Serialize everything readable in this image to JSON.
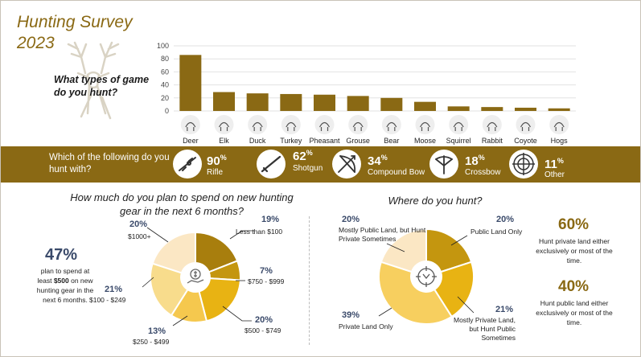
{
  "title_line1": "Hunting Survey",
  "title_line2": "2023",
  "chart_data": [
    {
      "type": "bar",
      "question": "What types of game do you hunt?",
      "categories": [
        "Deer",
        "Elk",
        "Duck",
        "Turkey",
        "Pheasant",
        "Grouse",
        "Bear",
        "Moose",
        "Squirrel",
        "Rabbit",
        "Coyote",
        "Hogs"
      ],
      "values": [
        86,
        29,
        27,
        26,
        25,
        23,
        20,
        14,
        7,
        6,
        5,
        4
      ],
      "ylim": [
        0,
        100
      ],
      "yticks": [
        0,
        20,
        40,
        60,
        80,
        100
      ],
      "grid": true,
      "color": "#8a6914"
    },
    {
      "type": "pie",
      "question": "How much do you plan to spend on new hunting gear in the next 6 months?",
      "slices": [
        {
          "label": "Less than $100",
          "value": 19,
          "pct": "19%",
          "color": "#a87e0d"
        },
        {
          "label": "$750 - $999",
          "value": 7,
          "pct": "7%",
          "color": "#c4960f"
        },
        {
          "label": "$500 - $749",
          "value": 20,
          "pct": "20%",
          "color": "#e8b313"
        },
        {
          "label": "$250 - $499",
          "value": 13,
          "pct": "13%",
          "color": "#f5c84e"
        },
        {
          "label": "$100 - $249",
          "value": 21,
          "pct": "21%",
          "color": "#f8dc8c"
        },
        {
          "label": "$1000+",
          "value": 20,
          "pct": "20%",
          "color": "#fbe7c4"
        }
      ]
    },
    {
      "type": "pie",
      "question": "Where do you hunt?",
      "slices": [
        {
          "label": "Public Land Only",
          "value": 20,
          "pct": "20%",
          "color": "#c4960f"
        },
        {
          "label": "Mostly Private Land, but Hunt Public Sometimes",
          "value": 21,
          "pct": "21%",
          "color": "#e8b313"
        },
        {
          "label": "Private Land Only",
          "value": 39,
          "pct": "39%",
          "color": "#f7cf5f"
        },
        {
          "label": "Mostly Public Land, but Hunt Private Sometimes",
          "value": 20,
          "pct": "20%",
          "color": "#fbe7c4"
        }
      ]
    }
  ],
  "weapons": {
    "question": "Which of the following do you hunt with?",
    "items": [
      {
        "pct": "90",
        "unit": "%",
        "label": "Rifle",
        "icon": "rifle-icon"
      },
      {
        "pct": "62",
        "unit": "%",
        "label": "Shotgun",
        "icon": "shotgun-icon"
      },
      {
        "pct": "34",
        "unit": "%",
        "label": "Compound Bow",
        "icon": "bow-icon"
      },
      {
        "pct": "18",
        "unit": "%",
        "label": "Crossbow",
        "icon": "crossbow-icon"
      },
      {
        "pct": "11",
        "unit": "%",
        "label": "Other",
        "icon": "target-icon"
      }
    ]
  },
  "spend": {
    "big": "47%",
    "line1": "plan to spend at",
    "line2_pre": "least ",
    "line2_bold": "$500",
    "line2_post": " on new",
    "line3": "hunting gear in the",
    "line4": "next 6 months."
  },
  "land": {
    "private_pct": "60%",
    "private_text": "Hunt private land either exclusively or most of the time.",
    "public_pct": "40%",
    "public_text": "Hunt public land either exclusively or most of the time."
  },
  "colors": {
    "brand": "#8a6914",
    "navy": "#3a4a6a"
  }
}
